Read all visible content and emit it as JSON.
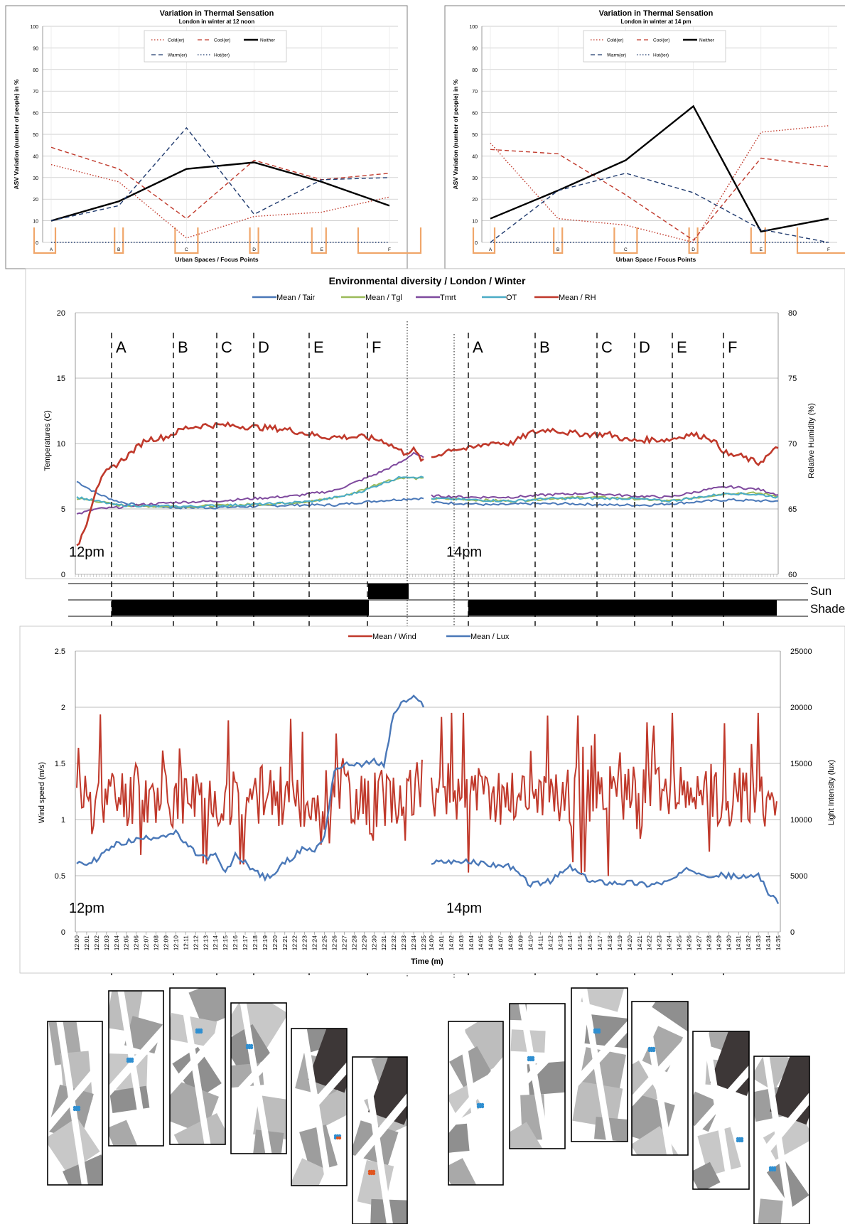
{
  "chart_data": [
    {
      "id": "asv_noon",
      "type": "line",
      "title": "Variation in Thermal Sensation",
      "subtitle": "London in winter at 12 noon",
      "xlabel": "Urban Spaces / Focus Points",
      "ylabel": "ASV Variation (number of people) in %",
      "ylim": [
        0,
        100
      ],
      "yticks": [
        "0",
        "10",
        "20",
        "30",
        "40",
        "50",
        "60",
        "70",
        "80",
        "90",
        "100"
      ],
      "categories": [
        "A",
        "B",
        "C",
        "D",
        "E",
        "F"
      ],
      "series": [
        {
          "name": "Cold(er)",
          "color": "#c0392b",
          "dash": "dot",
          "values": [
            36,
            28,
            2,
            12,
            14,
            21
          ]
        },
        {
          "name": "Cool(er)",
          "color": "#c0392b",
          "dash": "dash",
          "values": [
            44,
            34,
            11,
            38,
            29,
            32
          ]
        },
        {
          "name": "Neither",
          "color": "#000000",
          "dash": "solid",
          "values": [
            10,
            19,
            34,
            37,
            28,
            17
          ]
        },
        {
          "name": "Warm(er)",
          "color": "#1f3a6e",
          "dash": "dash",
          "values": [
            10,
            17,
            53,
            13,
            29,
            30
          ]
        },
        {
          "name": "Hot(ter)",
          "color": "#1f3a6e",
          "dash": "dot",
          "values": [
            0,
            0,
            0,
            0,
            0,
            0
          ]
        }
      ]
    },
    {
      "id": "asv_14pm",
      "type": "line",
      "title": "Variation in Thermal Sensation",
      "subtitle": "London in winter at 14 pm",
      "xlabel": "Urban Space / Focus Points",
      "ylabel": "ASV Variation (number of people) in %",
      "ylim": [
        0,
        100
      ],
      "yticks": [
        "0",
        "10",
        "20",
        "30",
        "40",
        "50",
        "60",
        "70",
        "80",
        "90",
        "100"
      ],
      "categories": [
        "A",
        "B",
        "C",
        "D",
        "E",
        "F"
      ],
      "series": [
        {
          "name": "Cold(er)",
          "color": "#c0392b",
          "dash": "dot",
          "values": [
            46,
            11,
            8,
            0,
            51,
            54
          ]
        },
        {
          "name": "Cool(er)",
          "color": "#c0392b",
          "dash": "dash",
          "values": [
            43,
            41,
            22,
            1,
            39,
            35
          ]
        },
        {
          "name": "Neither",
          "color": "#000000",
          "dash": "solid",
          "values": [
            11,
            24,
            38,
            63,
            5,
            11
          ]
        },
        {
          "name": "Warm(er)",
          "color": "#1f3a6e",
          "dash": "dash",
          "values": [
            0,
            24,
            32,
            23,
            6,
            0
          ]
        },
        {
          "name": "Hot(ter)",
          "color": "#1f3a6e",
          "dash": "dot",
          "values": [
            0,
            0,
            0,
            0,
            0,
            0
          ]
        }
      ]
    },
    {
      "id": "env",
      "type": "line",
      "title": "Environmental diversity / London / Winter",
      "ylabel": "Temperatures (C)",
      "ylabel_right": "Relative Humidity (%)",
      "ylim": [
        0,
        20
      ],
      "ylim_right": [
        60,
        80
      ],
      "yticks": [
        "0",
        "5",
        "10",
        "15",
        "20"
      ],
      "yticks_right": [
        "60",
        "65",
        "70",
        "75",
        "80"
      ],
      "annotations": [
        "12pm",
        "14pm"
      ],
      "focus_points": [
        "A",
        "B",
        "C",
        "D",
        "E",
        "F",
        "A",
        "B",
        "C",
        "D",
        "E",
        "F"
      ],
      "condition_labels": {
        "sun": "Sun",
        "shade": "Shade"
      },
      "series": [
        {
          "name": "Mean / Tair",
          "color": "#4a78b8",
          "axis": "left",
          "t": [
            0,
            2,
            4,
            6,
            8,
            10,
            14,
            18,
            22,
            26,
            30,
            34,
            35
          ],
          "v": [
            7.1,
            6.2,
            5.6,
            5.3,
            5.2,
            5.1,
            5.1,
            5.2,
            5.3,
            5.3,
            5.6,
            5.8,
            5.8
          ],
          "t2": [
            0,
            4,
            6,
            10,
            14,
            18,
            22,
            26,
            30,
            34,
            35
          ],
          "v2": [
            5.5,
            5.4,
            5.3,
            5.4,
            5.4,
            5.3,
            5.3,
            5.5,
            5.7,
            5.6,
            5.6
          ]
        },
        {
          "name": "Mean / Tgl",
          "color": "#9bbb59",
          "axis": "left",
          "t": [
            0,
            2,
            4,
            8,
            12,
            16,
            20,
            24,
            27,
            29,
            31,
            33,
            35
          ],
          "v": [
            5.8,
            5.6,
            5.3,
            5.2,
            5.2,
            5.3,
            5.4,
            5.6,
            6.0,
            6.5,
            7.1,
            7.4,
            7.3
          ],
          "t2": [
            0,
            4,
            8,
            12,
            16,
            20,
            24,
            28,
            30,
            33,
            35
          ],
          "v2": [
            5.8,
            5.7,
            5.6,
            5.8,
            5.9,
            5.8,
            5.6,
            6.0,
            6.2,
            6.2,
            6.0
          ]
        },
        {
          "name": "Tmrt",
          "color": "#7f4a9e",
          "axis": "left",
          "t": [
            0,
            1,
            2,
            4,
            6,
            8,
            10,
            14,
            18,
            22,
            26,
            28,
            30,
            32,
            33,
            34,
            35
          ],
          "v": [
            4.6,
            4.8,
            5.0,
            5.1,
            5.3,
            5.4,
            5.5,
            5.6,
            5.8,
            6.0,
            6.4,
            7.0,
            7.6,
            8.3,
            8.7,
            9.3,
            8.9
          ],
          "t2": [
            0,
            4,
            8,
            12,
            16,
            20,
            24,
            28,
            30,
            33,
            35
          ],
          "v2": [
            6.0,
            5.9,
            5.9,
            6.1,
            6.2,
            6.0,
            5.9,
            6.5,
            6.7,
            6.5,
            6.1
          ]
        },
        {
          "name": "OT",
          "color": "#4bacc6",
          "axis": "left",
          "t": [
            0,
            2,
            4,
            8,
            12,
            16,
            20,
            24,
            27,
            29,
            31,
            33,
            35
          ],
          "v": [
            5.9,
            5.6,
            5.3,
            5.2,
            5.2,
            5.3,
            5.4,
            5.6,
            6.0,
            6.4,
            7.0,
            7.5,
            7.4
          ],
          "t2": [
            0,
            4,
            8,
            12,
            16,
            20,
            24,
            28,
            30,
            33,
            35
          ],
          "v2": [
            5.8,
            5.7,
            5.6,
            5.8,
            5.8,
            5.8,
            5.6,
            6.0,
            6.2,
            6.1,
            5.9
          ]
        },
        {
          "name": "Mean / RH",
          "color": "#c0392b",
          "axis": "right",
          "t": [
            0,
            1,
            2,
            3,
            5,
            7,
            9,
            11,
            13,
            15,
            17,
            19,
            21,
            23,
            25,
            27,
            29,
            31,
            33,
            34,
            35
          ],
          "v": [
            62,
            64,
            66.7,
            67.8,
            69,
            70.3,
            70.5,
            71.2,
            71.4,
            71.4,
            71.3,
            71.2,
            71.1,
            70.8,
            70.5,
            70.5,
            70.5,
            70.2,
            69.3,
            69.5,
            68.6
          ],
          "t2": [
            0,
            2,
            4,
            6,
            8,
            10,
            12,
            14,
            16,
            18,
            20,
            22,
            24,
            26,
            28,
            30,
            31,
            33,
            35
          ],
          "v2": [
            68.9,
            69.6,
            69.6,
            70.1,
            70.0,
            70.8,
            71.1,
            70.8,
            70.7,
            70.7,
            70.2,
            70.3,
            70.3,
            70.7,
            70.5,
            69.1,
            69.1,
            68.5,
            69.7
          ]
        }
      ]
    },
    {
      "id": "wind",
      "type": "line",
      "ylabel": "Wind speed (m/s)",
      "ylabel_right": "Light Intensity (lux)",
      "xlabel": "Time (m)",
      "ylim": [
        0,
        2.5
      ],
      "ylim_right": [
        0,
        25000
      ],
      "yticks": [
        "0",
        "0.5",
        "1",
        "1.5",
        "2",
        "2.5"
      ],
      "yticks_right": [
        "0",
        "5000",
        "10000",
        "15000",
        "20000",
        "25000"
      ],
      "annotations": [
        "12pm",
        "14pm"
      ],
      "x_ticks_1": [
        "12:00",
        "12:01",
        "12:02",
        "12:03",
        "12:04",
        "12:05",
        "12:06",
        "12:07",
        "12:08",
        "12:09",
        "12:10",
        "12:11",
        "12:12",
        "12:13",
        "12:14",
        "12:15",
        "12:16",
        "12:17",
        "12:18",
        "12:19",
        "12:20",
        "12:21",
        "12:22",
        "12:23",
        "12:24",
        "12:25",
        "12:26",
        "12:27",
        "12:28",
        "12:29",
        "12:30",
        "12:31",
        "12:32",
        "12:33",
        "12:34",
        "12:35"
      ],
      "x_ticks_2": [
        "14:00",
        "14:01",
        "14:02",
        "14:03",
        "14:04",
        "14:05",
        "14:06",
        "14:07",
        "14:08",
        "14:09",
        "14:10",
        "14:11",
        "14:12",
        "14:13",
        "14:14",
        "14:15",
        "14:16",
        "14:17",
        "14:18",
        "14:19",
        "14:20",
        "14:21",
        "14:22",
        "14:23",
        "14:24",
        "14:25",
        "14:26",
        "14:27",
        "14:28",
        "14:29",
        "14:30",
        "14:31",
        "14:32",
        "14:33",
        "14:34",
        "14:35"
      ],
      "series": [
        {
          "name": "Mean / Wind",
          "color": "#c0392b",
          "axis": "left",
          "range1": [
            0.6,
            1.95
          ],
          "range2": [
            0.45,
            1.95
          ]
        },
        {
          "name": "Mean / Lux",
          "color": "#4a78b8",
          "axis": "right",
          "t": [
            0,
            1,
            2,
            3,
            4,
            6,
            8,
            10,
            11,
            12,
            13,
            14,
            15,
            16,
            17,
            18,
            19,
            20,
            21,
            22,
            23,
            24,
            25,
            26,
            27,
            28,
            29,
            30,
            31,
            32,
            33,
            34,
            35
          ],
          "v": [
            6200,
            6000,
            6500,
            7200,
            7800,
            8200,
            8500,
            8800,
            7800,
            7000,
            6600,
            6800,
            5200,
            6800,
            6200,
            5400,
            4800,
            5200,
            6200,
            6800,
            7500,
            7200,
            8500,
            14500,
            14800,
            15000,
            14900,
            15200,
            14800,
            19500,
            20500,
            20800,
            20200
          ],
          "t2": [
            0,
            2,
            4,
            6,
            8,
            10,
            12,
            14,
            16,
            18,
            20,
            22,
            24,
            26,
            28,
            30,
            32,
            33,
            34,
            35
          ],
          "v2": [
            6200,
            6300,
            6200,
            6000,
            5800,
            4200,
            4500,
            5800,
            4500,
            4400,
            4400,
            4200,
            4500,
            5600,
            5100,
            5000,
            4800,
            5200,
            3500,
            2500
          ]
        }
      ]
    }
  ]
}
